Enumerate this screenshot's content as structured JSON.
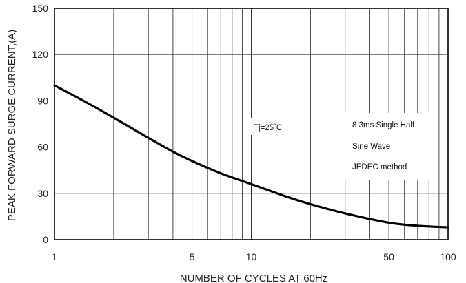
{
  "chart_data": {
    "type": "line",
    "x_scale": "log",
    "xlim": [
      1,
      100
    ],
    "ylim": [
      0,
      150
    ],
    "grid": true,
    "xlabel": "NUMBER OF CYCLES AT 60Hz",
    "ylabel": "PEAK FORWARD SURGE CURRENT,(A)",
    "x_tick_labels": [
      "1",
      "5",
      "10",
      "50",
      "100"
    ],
    "y_tick_labels": [
      "0",
      "30",
      "60",
      "90",
      "120",
      "150"
    ],
    "annotations": [
      "Tj=25˚C",
      "8.3ms Single Half",
      "Sine Wave",
      "JEDEC method"
    ],
    "series": [
      {
        "x": [
          1,
          1.5,
          2,
          3,
          4,
          5,
          7,
          10,
          15,
          20,
          30,
          50,
          70,
          100
        ],
        "y": [
          100,
          88,
          79,
          66,
          57,
          51,
          43,
          36,
          28,
          23,
          17,
          11,
          9,
          8
        ]
      }
    ]
  }
}
